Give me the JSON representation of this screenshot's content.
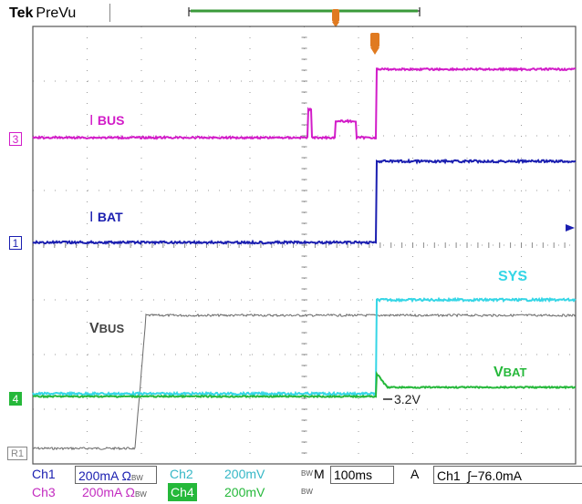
{
  "header": {
    "brand": "Tek",
    "mode": "PreVu"
  },
  "traces": {
    "ibus": {
      "label_prefix": "I",
      "label": "BUS",
      "color": "#d21cc8"
    },
    "ibat": {
      "label_prefix": "I",
      "label": "BAT",
      "color": "#1a1eb0"
    },
    "vbus": {
      "label_prefix": "V",
      "label": "BUS",
      "color": "#6a6a6a"
    },
    "sys": {
      "label": "SYS",
      "color": "#35d6e6"
    },
    "vbat": {
      "label_prefix": "V",
      "label": "BAT",
      "color": "#25b83a"
    }
  },
  "annotations": {
    "vbat_level": "3.2V"
  },
  "channel_markers": {
    "ch3": "3",
    "ch1": "1",
    "ch4": "4",
    "ref1": "R1"
  },
  "settings": {
    "ch1_label": "Ch1",
    "ch1_scale": "200mA",
    "ch1_icons": "Ω",
    "ch2_label": "Ch2",
    "ch2_scale": "200mV",
    "ch3_label": "Ch3",
    "ch3_scale": "200mA",
    "ch3_icons": "Ω",
    "ch4_label": "Ch4",
    "ch4_scale": "200mV",
    "bw_mark": "BW",
    "timebase_prefix": "M",
    "timebase": "100ms",
    "acq_mode": "A",
    "trigger_source": "Ch1",
    "trigger_slope": "ʃ",
    "trigger_level": "−76.0mA"
  }
}
